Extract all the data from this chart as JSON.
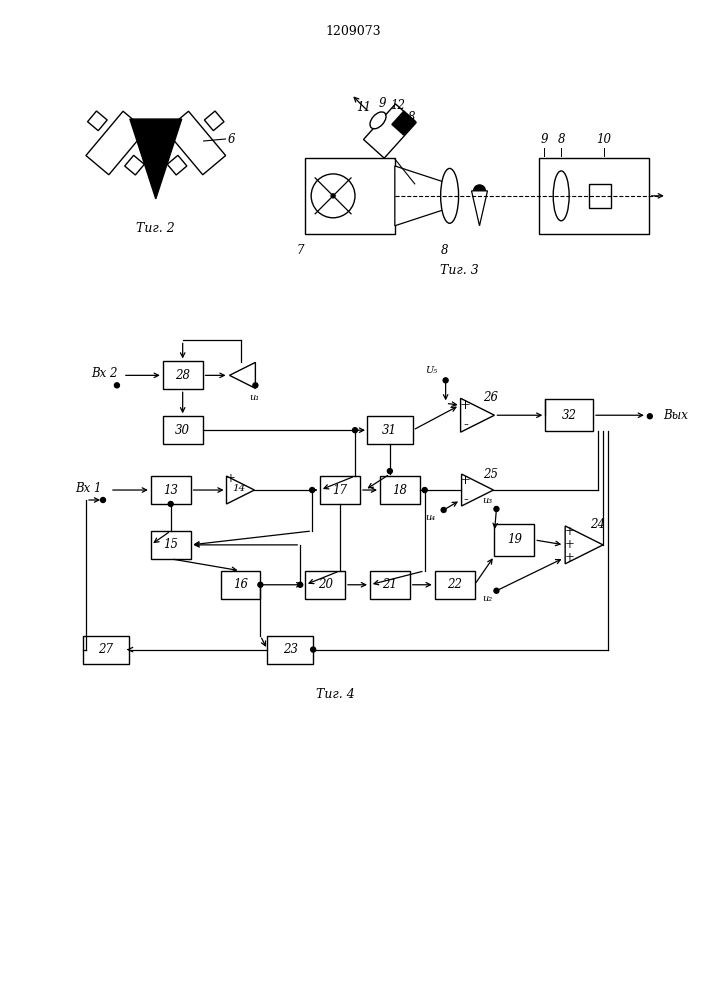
{
  "title": "1209073",
  "fig2_label": "Τиг. 2",
  "fig3_label": "Τиг. 3",
  "fig4_label": "Τиг. 4",
  "bg_color": "#ffffff",
  "lc": "#000000",
  "fs": 8.5,
  "title_fs": 9
}
